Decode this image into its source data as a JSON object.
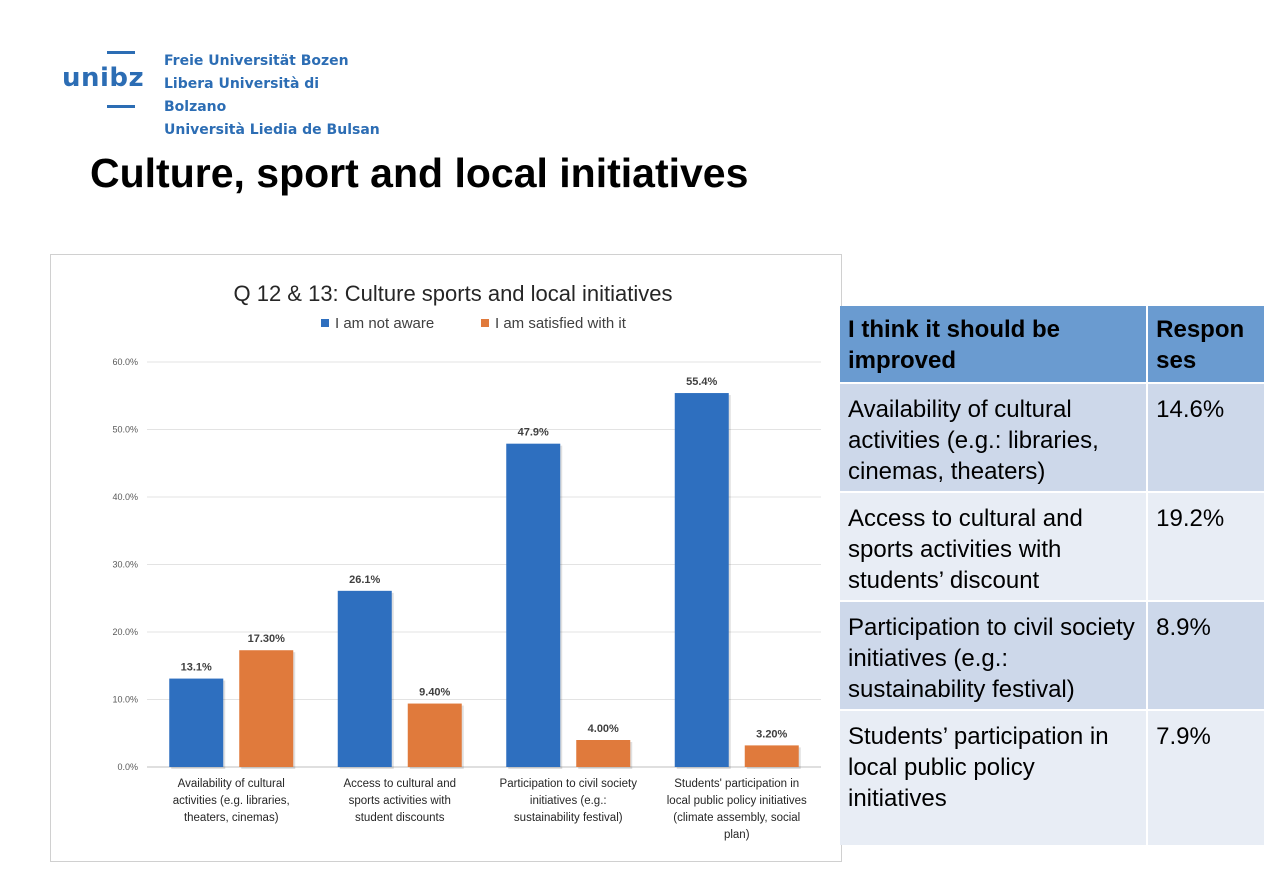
{
  "logo": {
    "wordmark": "unibz",
    "lines": [
      "Freie Universität Bozen",
      "Libera Università di Bolzano",
      "Università Liedia de Bulsan"
    ]
  },
  "page_title": "Culture, sport and local initiatives",
  "colors": {
    "brand": "#2c6db4",
    "series_blue": "#2e6fbf",
    "series_orange": "#e07a3c",
    "table_header": "#6a9bd0"
  },
  "chart_data": {
    "type": "bar",
    "title": "Q 12 & 13: Culture sports and local initiatives",
    "legend_position": "top",
    "categories": [
      [
        "Availability of cultural",
        "activities (e.g. libraries,",
        "theaters, cinemas)"
      ],
      [
        "Access to cultural and",
        "sports activities with",
        "student discounts"
      ],
      [
        "Participation to civil society",
        "initiatives (e.g.:",
        "sustainability festival)"
      ],
      [
        "Students' participation in",
        "local public policy initiatives",
        "(climate assembly, social",
        "plan)"
      ]
    ],
    "series": [
      {
        "name": "I am not aware",
        "values": [
          13.1,
          26.1,
          47.9,
          55.4
        ],
        "labels": [
          "13.1%",
          "26.1%",
          "47.9%",
          "55.4%"
        ],
        "color": "#2e6fbf"
      },
      {
        "name": "I am satisfied with it",
        "values": [
          17.3,
          9.4,
          4.0,
          3.2
        ],
        "labels": [
          "17.30%",
          "9.40%",
          "4.00%",
          "3.20%"
        ],
        "color": "#e07a3c"
      }
    ],
    "ylim": [
      0,
      60
    ],
    "yticks": [
      "0.0%",
      "10.0%",
      "20.0%",
      "30.0%",
      "40.0%",
      "50.0%",
      "60.0%"
    ],
    "grid": true
  },
  "table": {
    "headers": [
      "I think it should be improved",
      "Respon ses"
    ],
    "rows": [
      {
        "item": "Availability of cultural activities (e.g.: libraries, cinemas, theaters)",
        "value": "14.6%"
      },
      {
        "item": "Access to cultural and sports activities with students’ discount",
        "value": "19.2%"
      },
      {
        "item": "Participation to civil society initiatives (e.g.: sustainability festival)",
        "value": "8.9%"
      },
      {
        "item": "Students’ participation in local public policy initiatives",
        "value": "7.9%"
      }
    ]
  }
}
